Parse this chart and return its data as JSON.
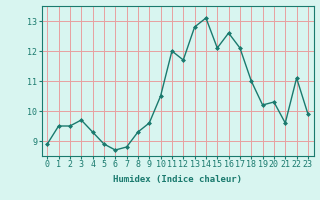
{
  "x": [
    0,
    1,
    2,
    3,
    4,
    5,
    6,
    7,
    8,
    9,
    10,
    11,
    12,
    13,
    14,
    15,
    16,
    17,
    18,
    19,
    20,
    21,
    22,
    23
  ],
  "y": [
    8.9,
    9.5,
    9.5,
    9.7,
    9.3,
    8.9,
    8.7,
    8.8,
    9.3,
    9.6,
    10.5,
    12.0,
    11.7,
    12.8,
    13.1,
    12.1,
    12.6,
    12.1,
    11.0,
    10.2,
    10.3,
    9.6,
    11.1,
    9.9
  ],
  "line_color": "#1a7a6e",
  "marker": "D",
  "marker_size": 2.0,
  "bg_color": "#d8f5f0",
  "grid_color": "#e8a0a0",
  "xlabel": "Humidex (Indice chaleur)",
  "ylim": [
    8.5,
    13.5
  ],
  "yticks": [
    9,
    10,
    11,
    12,
    13
  ],
  "xticks": [
    0,
    1,
    2,
    3,
    4,
    5,
    6,
    7,
    8,
    9,
    10,
    11,
    12,
    13,
    14,
    15,
    16,
    17,
    18,
    19,
    20,
    21,
    22,
    23
  ],
  "xlabel_fontsize": 6.5,
  "tick_fontsize": 6.0,
  "linewidth": 1.0
}
